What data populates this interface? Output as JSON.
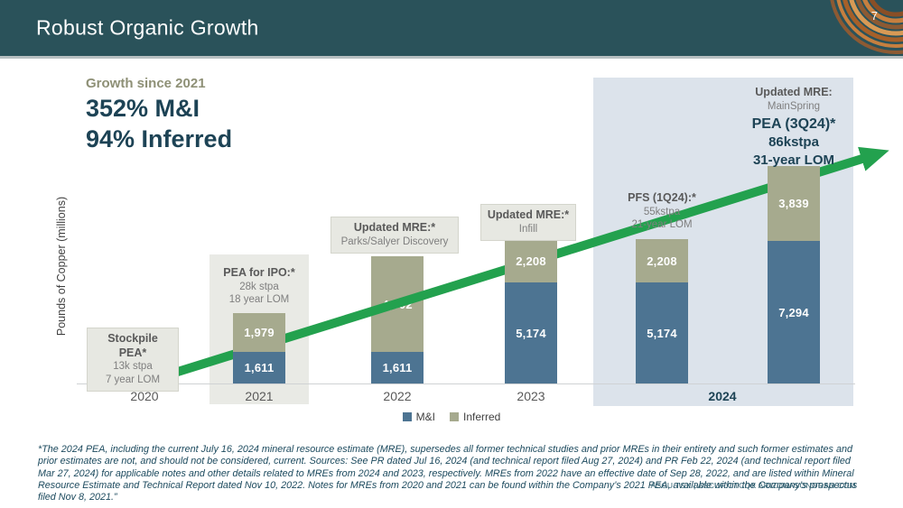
{
  "header": {
    "title": "Robust Organic Growth",
    "page_number": "7"
  },
  "callout": {
    "label": "Growth since 2021",
    "line1": "352% M&I",
    "line2": "94% Inferred"
  },
  "chart_data": {
    "type": "stacked-bar",
    "title": "",
    "ylabel": "Pounds of Copper (millions)",
    "legend": [
      {
        "name": "M&I",
        "color": "#4d7492"
      },
      {
        "name": "Inferred",
        "color": "#a6aa8e"
      }
    ],
    "x_axis": [
      "2020",
      "2021",
      "2022",
      "2023",
      "2024"
    ],
    "bars": [
      {
        "id": "2020",
        "group": "2020",
        "m_i": 0,
        "inferred": 219
      },
      {
        "id": "2021",
        "group": "2021",
        "m_i": 1611,
        "inferred": 1979
      },
      {
        "id": "2022",
        "group": "2022",
        "m_i": 1611,
        "inferred": 4902
      },
      {
        "id": "2023",
        "group": "2023",
        "m_i": 5174,
        "inferred": 2208
      },
      {
        "id": "2024-pfs",
        "group": "2024",
        "m_i": 5174,
        "inferred": 2208
      },
      {
        "id": "2024-pea",
        "group": "2024",
        "m_i": 7294,
        "inferred": 3839
      }
    ],
    "trend_arrow_color": "#23a14e",
    "highlight_panel_year": "2024"
  },
  "annotations": {
    "a2020": {
      "title": "Stockpile PEA*",
      "line1": "13k stpa",
      "line2": "7 year LOM"
    },
    "a2021": {
      "title": "PEA for IPO:*",
      "line1": "28k stpa",
      "line2": "18 year LOM"
    },
    "a2022": {
      "title": "Updated MRE:*",
      "line1": "Parks/Salyer Discovery"
    },
    "a2023": {
      "title": "Updated MRE:*",
      "line1": "Infill"
    },
    "a2024_pfs": {
      "title": "PFS (1Q24):*",
      "line1": "55kstpa",
      "line2": "21-year LOM"
    },
    "a2024_mre": {
      "title": "Updated MRE:",
      "line1": "MainSpring"
    },
    "a2024_pea": {
      "title": "PEA (3Q24)*",
      "line1": "86kstpa",
      "line2": "31-year LOM"
    }
  },
  "footer": {
    "footnote": "*The 2024 PEA, including the current July 16, 2024 mineral resource estimate (MRE), supersedes all former technical studies and prior MREs in their entirety and such former estimates and prior estimates are not, and should not be considered, current. Sources: See PR dated Jul 16, 2024 (and technical report filed Aug 27, 2024) and PR Feb 22, 2024 (and technical report filed Mar 27, 2024) for applicable notes and other details related to MREs from 2024 and 2023, respectively. MREs from 2022 have an effective date of Sep 28, 2022, and are listed within Mineral Resource Estimate and Technical Report dated Nov 10, 2022. Notes for MREs from 2020 and 2021 can be found within the Company’s 2021 PEA, available within the Company’s prospectus filed Nov 8, 2021.”",
    "ticker": "ASCU:TSX | ASCUF:OTCQX   ARIZONASONORAN.COM"
  },
  "colors": {
    "header_bg": "#2a525a",
    "accent_teal": "#1d4355",
    "arrow_green": "#23a14e",
    "panel_2021": "#e9eae5",
    "panel_2024": "#dce3eb",
    "copper_swirl": "#c67f3f"
  }
}
